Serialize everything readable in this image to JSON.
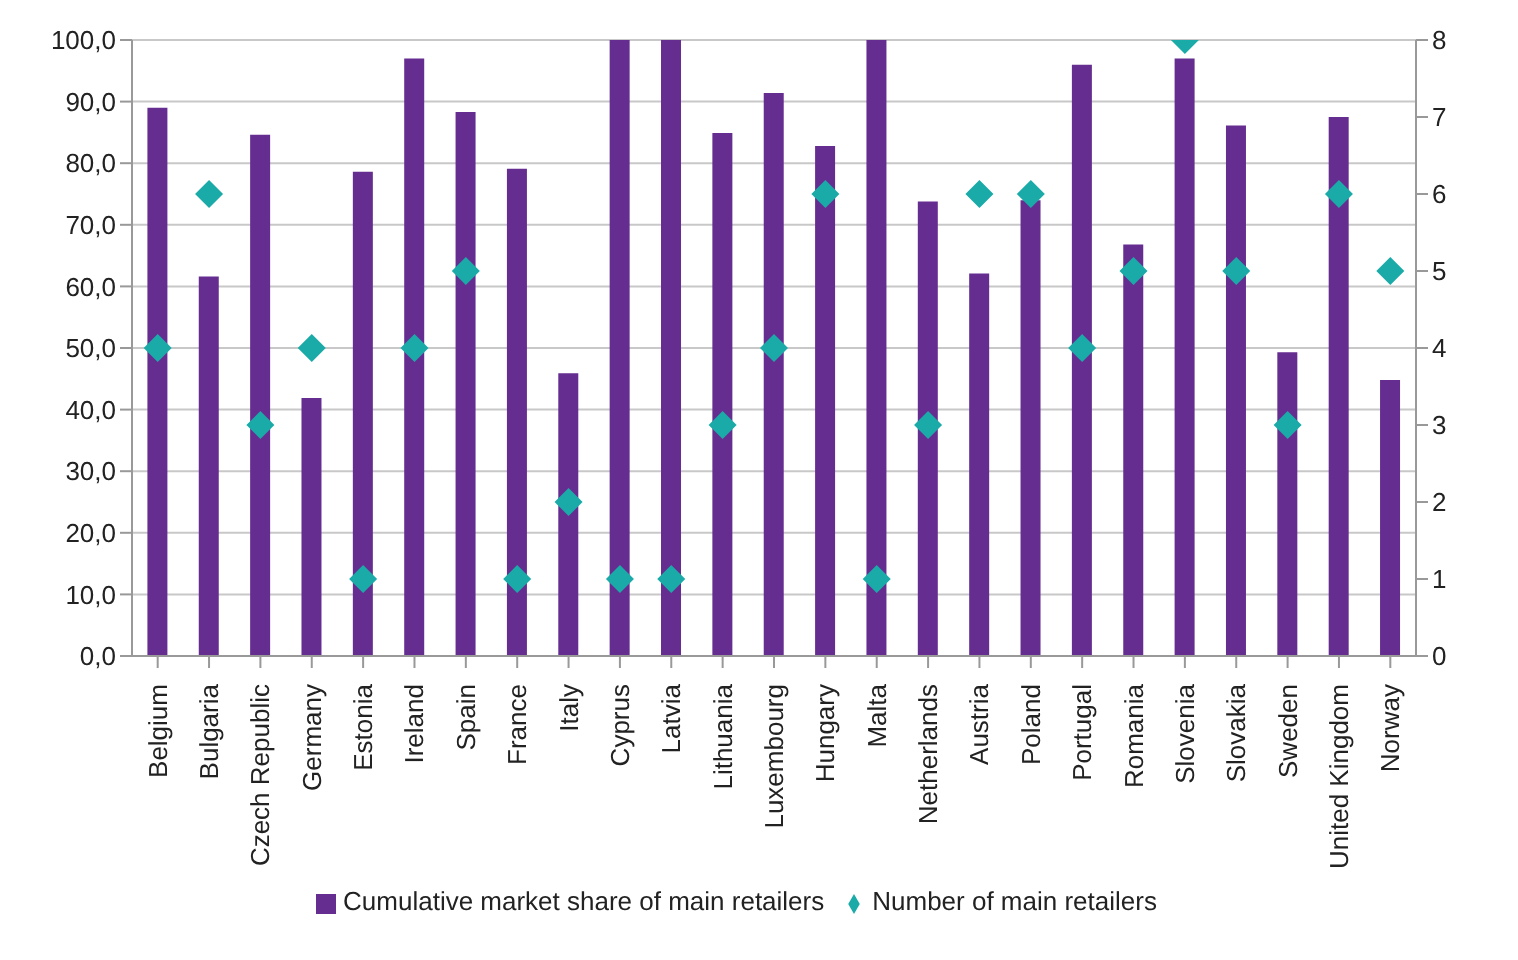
{
  "chart_data": {
    "type": "bar",
    "categories": [
      "Belgium",
      "Bulgaria",
      "Czech Republic",
      "Germany",
      "Estonia",
      "Ireland",
      "Spain",
      "France",
      "Italy",
      "Cyprus",
      "Latvia",
      "Lithuania",
      "Luxembourg",
      "Hungary",
      "Malta",
      "Netherlands",
      "Austria",
      "Poland",
      "Portugal",
      "Romania",
      "Slovenia",
      "Slovakia",
      "Sweden",
      "United Kingdom",
      "Norway"
    ],
    "series": [
      {
        "name": "Cumulative market share of main retailers",
        "color": "#662d91",
        "values": [
          89,
          61.6,
          84.6,
          41.9,
          78.6,
          97,
          88.3,
          79.1,
          45.9,
          100,
          100,
          84.9,
          91.4,
          82.8,
          100,
          73.8,
          62.1,
          74,
          96,
          66.8,
          97,
          86.1,
          49.3,
          87.5,
          44.8
        ]
      },
      {
        "name": "Number of main retailers",
        "type": "scatter",
        "axis": "y2",
        "color": "#1aaba8",
        "marker": "diamond",
        "values": [
          4,
          6,
          3,
          4,
          1,
          4,
          5,
          1,
          2,
          1,
          1,
          3,
          4,
          6,
          1,
          3,
          6,
          6,
          4,
          5,
          8,
          5,
          3,
          6,
          5
        ]
      }
    ],
    "ylim": [
      0,
      100
    ],
    "yticks": [
      {
        "value": 0,
        "label": "0,0"
      },
      {
        "value": 10,
        "label": "10,0"
      },
      {
        "value": 20,
        "label": "20,0"
      },
      {
        "value": 30,
        "label": "30,0"
      },
      {
        "value": 40,
        "label": "40,0"
      },
      {
        "value": 50,
        "label": "50,0"
      },
      {
        "value": 60,
        "label": "60,0"
      },
      {
        "value": 70,
        "label": "70,0"
      },
      {
        "value": 80,
        "label": "80,0"
      },
      {
        "value": 90,
        "label": "90,0"
      },
      {
        "value": 100,
        "label": "100,0"
      }
    ],
    "y2lim": [
      0,
      8
    ],
    "y2ticks": [
      0,
      1,
      2,
      3,
      4,
      5,
      6,
      7,
      8
    ],
    "grid": "y",
    "legend": "bottom"
  }
}
